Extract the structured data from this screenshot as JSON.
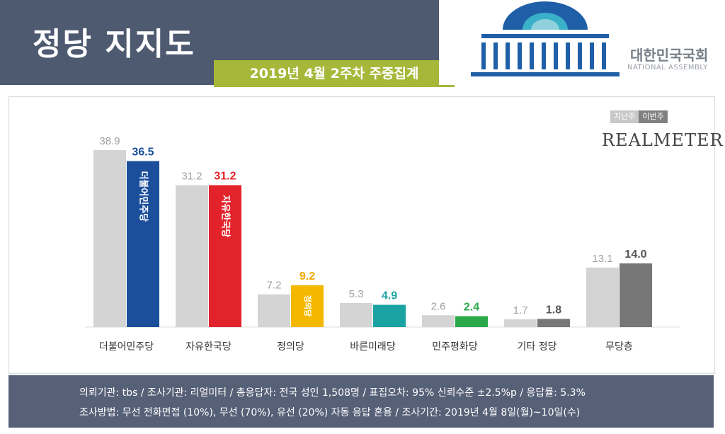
{
  "header": {
    "title": "정당 지지도",
    "subtitle": "2019년 4월 2주차 주중집계",
    "logo_name": "대한민국국회",
    "logo_sub": "NATIONAL ASSEMBLY"
  },
  "legend": {
    "prev": "지난주",
    "cur": "이번주"
  },
  "brand": "REALMETER",
  "chart_data": {
    "type": "bar",
    "categories": [
      "더불어민주당",
      "자유한국당",
      "정의당",
      "바른미래당",
      "민주평화당",
      "기타 정당",
      "무당층"
    ],
    "series": [
      {
        "name": "지난주",
        "values": [
          38.9,
          31.2,
          7.2,
          5.3,
          2.6,
          1.7,
          13.1
        ]
      },
      {
        "name": "이번주",
        "values": [
          36.5,
          31.2,
          9.2,
          4.9,
          2.4,
          1.8,
          14.0
        ]
      }
    ],
    "colors": {
      "prev": "#d4d4d4",
      "current": [
        "#1b4f9c",
        "#e3232c",
        "#f5b800",
        "#1ba3a3",
        "#2ba84a",
        "#777777",
        "#777777"
      ],
      "current_labels": [
        "#1b4f9c",
        "#e3232c",
        "#f2a900",
        "#1ba3a3",
        "#2ba84a",
        "#555555",
        "#555555"
      ]
    },
    "bar_texts": [
      "더불어민주당",
      "자유한국당",
      "정의당",
      "",
      "",
      "",
      ""
    ],
    "ylim": [
      0,
      40
    ],
    "title": "정당 지지도",
    "xlabel": "",
    "ylabel": ""
  },
  "footer": {
    "line1": "의뢰기관: tbs / 조사기관: 리얼미터 / 총응답자: 전국 성인 1,508명 / 표집오차: 95% 신뢰수준 ±2.5%p / 응답률: 5.3%",
    "line2": "조사방법: 무선 전화면접 (10%), 무선 (70%), 유선 (20%) 자동 응답 혼용 / 조사기간: 2019년 4월 8일(월)~10일(수)"
  }
}
